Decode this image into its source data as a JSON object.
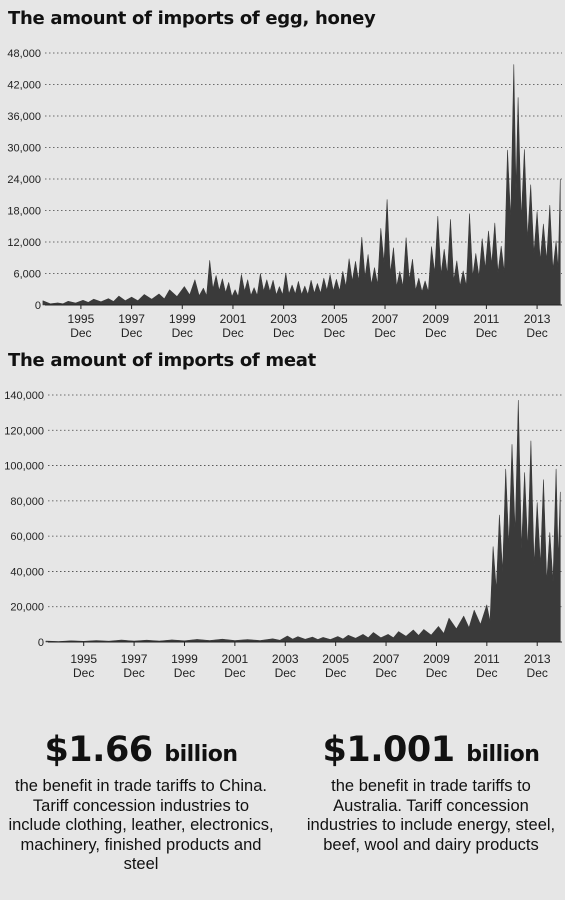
{
  "chart_data": [
    {
      "type": "area",
      "title": "The amount of imports of egg, honey",
      "xlabel": "",
      "ylabel": "",
      "ylim": [
        0,
        48000
      ],
      "yticks": [
        "0",
        "6,000",
        "12,000",
        "18,000",
        "24,000",
        "30,000",
        "36,000",
        "42,000",
        "48,000"
      ],
      "xticks": [
        {
          "year": "1995",
          "month": "Dec"
        },
        {
          "year": "1997",
          "month": "Dec"
        },
        {
          "year": "1999",
          "month": "Dec"
        },
        {
          "year": "2001",
          "month": "Dec"
        },
        {
          "year": "2003",
          "month": "Dec"
        },
        {
          "year": "2005",
          "month": "Dec"
        },
        {
          "year": "2007",
          "month": "Dec"
        },
        {
          "year": "2009",
          "month": "Dec"
        },
        {
          "year": "2011",
          "month": "Dec"
        },
        {
          "year": "2013",
          "month": "Dec"
        }
      ],
      "grid": true,
      "color": "#3a3a3a",
      "series": [
        {
          "x": [
            "1994-06",
            "1995-01",
            "1995-06",
            "1996-01",
            "1996-06",
            "1997-01",
            "1997-06",
            "1997-12",
            "1998-06",
            "1999-01",
            "1999-06",
            "2000-01",
            "2000-06",
            "2000-10",
            "2001-01",
            "2001-04",
            "2001-07",
            "2001-10",
            "2002-01",
            "2002-04",
            "2002-07",
            "2002-10",
            "2003-01",
            "2003-04",
            "2003-07",
            "2003-10",
            "2004-01",
            "2004-04",
            "2004-07",
            "2004-10",
            "2005-01",
            "2005-04",
            "2005-07",
            "2005-10",
            "2006-01",
            "2006-04",
            "2006-07",
            "2006-10",
            "2007-01",
            "2007-04",
            "2007-07",
            "2007-10",
            "2008-01",
            "2008-04",
            "2008-07",
            "2008-10",
            "2009-01",
            "2009-04",
            "2009-07",
            "2009-10",
            "2010-01",
            "2010-04",
            "2010-07",
            "2010-10",
            "2011-01",
            "2011-04",
            "2011-07",
            "2011-10",
            "2012-01",
            "2012-04",
            "2012-07",
            "2012-10",
            "2013-01",
            "2013-03",
            "2013-06",
            "2013-09",
            "2013-12",
            "2014-03",
            "2014-06",
            "2014-09",
            "2014-11"
          ],
          "y": [
            800,
            400,
            700,
            900,
            1100,
            1200,
            1700,
            1500,
            2000,
            2100,
            2900,
            3500,
            4800,
            3200,
            8500,
            5600,
            5000,
            4300,
            2900,
            5800,
            4800,
            3300,
            6000,
            4800,
            4700,
            3500,
            6100,
            3800,
            4500,
            3600,
            4700,
            4100,
            5100,
            5800,
            4900,
            6400,
            8800,
            8300,
            12900,
            9600,
            7100,
            14600,
            20100,
            10900,
            6400,
            12800,
            8700,
            5100,
            4600,
            11100,
            16900,
            10600,
            16300,
            8400,
            6500,
            17400,
            9800,
            12600,
            14100,
            15600,
            11200,
            29500,
            45800,
            39500,
            29600,
            22900,
            17800,
            15400,
            19000,
            12200,
            24000
          ]
        }
      ]
    },
    {
      "type": "area",
      "title": "The amount of imports of meat",
      "xlabel": "",
      "ylabel": "",
      "ylim": [
        0,
        140000
      ],
      "yticks": [
        "0",
        "20,000",
        "40,000",
        "60,000",
        "80,000",
        "100,000",
        "120,000",
        "140,000"
      ],
      "xticks": [
        {
          "year": "1995",
          "month": "Dec"
        },
        {
          "year": "1997",
          "month": "Dec"
        },
        {
          "year": "1999",
          "month": "Dec"
        },
        {
          "year": "2001",
          "month": "Dec"
        },
        {
          "year": "2003",
          "month": "Dec"
        },
        {
          "year": "2005",
          "month": "Dec"
        },
        {
          "year": "2007",
          "month": "Dec"
        },
        {
          "year": "2009",
          "month": "Dec"
        },
        {
          "year": "2011",
          "month": "Dec"
        },
        {
          "year": "2013",
          "month": "Dec"
        }
      ],
      "grid": true,
      "color": "#3a3a3a",
      "series": [
        {
          "x": [
            "1994-06",
            "1995-06",
            "1996-06",
            "1997-06",
            "1998-06",
            "1999-06",
            "2000-06",
            "2001-06",
            "2002-06",
            "2003-06",
            "2004-01",
            "2004-06",
            "2005-01",
            "2005-06",
            "2006-01",
            "2006-06",
            "2007-01",
            "2007-06",
            "2008-01",
            "2008-06",
            "2009-01",
            "2009-06",
            "2010-01",
            "2010-06",
            "2011-01",
            "2011-06",
            "2011-12",
            "2012-03",
            "2012-06",
            "2012-09",
            "2012-12",
            "2013-03",
            "2013-06",
            "2013-09",
            "2013-12",
            "2014-03",
            "2014-06",
            "2014-09",
            "2014-11"
          ],
          "y": [
            500,
            700,
            800,
            1100,
            1000,
            1200,
            1500,
            1600,
            1400,
            1800,
            3400,
            3000,
            2800,
            2600,
            3100,
            3800,
            4300,
            5400,
            4300,
            5900,
            6800,
            7100,
            8800,
            13500,
            14700,
            18000,
            21000,
            54000,
            72000,
            98000,
            112000,
            137000,
            96000,
            114000,
            79000,
            92000,
            62000,
            98000,
            85000
          ]
        }
      ]
    }
  ],
  "stats": [
    {
      "value": "$1.66",
      "unit": "billion",
      "description": "the benefit in trade tariffs to China. Tariff concession industries to include clothing, leather, electronics, machinery, finished products and steel"
    },
    {
      "value": "$1.001",
      "unit": "billion",
      "description": "the benefit in trade tariffs to Australia. Tariff concession industries to include energy, steel, beef, wool and dairy products"
    }
  ]
}
